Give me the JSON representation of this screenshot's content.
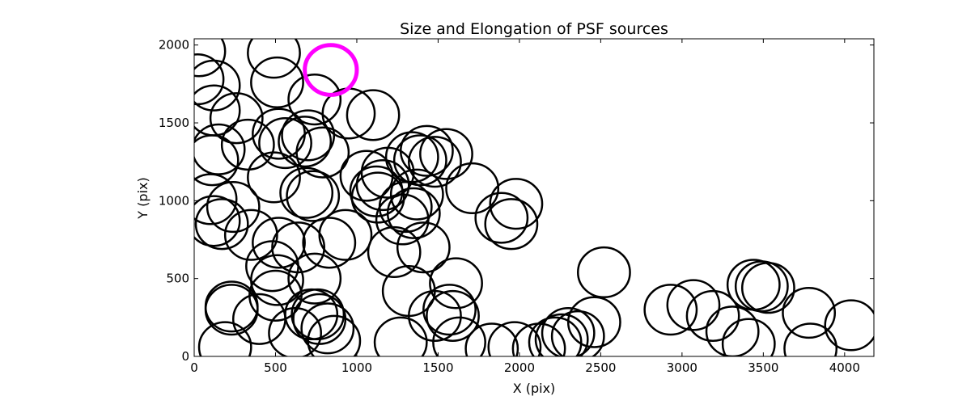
{
  "chart_data": {
    "type": "scatter",
    "title": "Size and Elongation of PSF sources",
    "xlabel": "X (pix)",
    "ylabel": "Y (pix)",
    "xlim": [
      0,
      4180
    ],
    "ylim": [
      0,
      2040
    ],
    "xticks": [
      0,
      500,
      1000,
      1500,
      2000,
      2500,
      3000,
      3500,
      4000
    ],
    "yticks": [
      0,
      500,
      1000,
      1500,
      2000
    ],
    "grid": false,
    "marker": "ellipse outline",
    "marker_width": 320,
    "marker_height": 320,
    "colors": {
      "sources": "#000000",
      "highlight": "#ff00ff"
    },
    "sources": [
      {
        "x": 30,
        "y": 1960
      },
      {
        "x": 20,
        "y": 1780
      },
      {
        "x": 120,
        "y": 1740
      },
      {
        "x": 120,
        "y": 1580
      },
      {
        "x": 260,
        "y": 1530
      },
      {
        "x": 150,
        "y": 1330
      },
      {
        "x": 110,
        "y": 1260
      },
      {
        "x": 100,
        "y": 1010
      },
      {
        "x": 120,
        "y": 870
      },
      {
        "x": 170,
        "y": 850
      },
      {
        "x": 240,
        "y": 960
      },
      {
        "x": 330,
        "y": 1360
      },
      {
        "x": 490,
        "y": 1950
      },
      {
        "x": 510,
        "y": 1760
      },
      {
        "x": 740,
        "y": 1650
      },
      {
        "x": 950,
        "y": 1560
      },
      {
        "x": 1100,
        "y": 1550
      },
      {
        "x": 520,
        "y": 1430
      },
      {
        "x": 560,
        "y": 1370
      },
      {
        "x": 680,
        "y": 1380
      },
      {
        "x": 700,
        "y": 1420
      },
      {
        "x": 790,
        "y": 1310
      },
      {
        "x": 490,
        "y": 1150
      },
      {
        "x": 690,
        "y": 1050
      },
      {
        "x": 730,
        "y": 1030
      },
      {
        "x": 350,
        "y": 780
      },
      {
        "x": 520,
        "y": 730
      },
      {
        "x": 640,
        "y": 700
      },
      {
        "x": 830,
        "y": 730
      },
      {
        "x": 930,
        "y": 780
      },
      {
        "x": 480,
        "y": 580
      },
      {
        "x": 510,
        "y": 490
      },
      {
        "x": 740,
        "y": 500
      },
      {
        "x": 500,
        "y": 390
      },
      {
        "x": 230,
        "y": 320
      },
      {
        "x": 230,
        "y": 300
      },
      {
        "x": 400,
        "y": 240
      },
      {
        "x": 190,
        "y": 60
      },
      {
        "x": 620,
        "y": 150
      },
      {
        "x": 720,
        "y": 270
      },
      {
        "x": 760,
        "y": 270
      },
      {
        "x": 770,
        "y": 240
      },
      {
        "x": 820,
        "y": 180
      },
      {
        "x": 860,
        "y": 100
      },
      {
        "x": 1060,
        "y": 1160
      },
      {
        "x": 1120,
        "y": 1060
      },
      {
        "x": 1160,
        "y": 1100
      },
      {
        "x": 1130,
        "y": 1020
      },
      {
        "x": 1190,
        "y": 1180
      },
      {
        "x": 1300,
        "y": 960
      },
      {
        "x": 1350,
        "y": 920
      },
      {
        "x": 1280,
        "y": 880
      },
      {
        "x": 1370,
        "y": 1040
      },
      {
        "x": 1230,
        "y": 670
      },
      {
        "x": 1410,
        "y": 700
      },
      {
        "x": 1320,
        "y": 420
      },
      {
        "x": 1340,
        "y": 1280
      },
      {
        "x": 1390,
        "y": 1260
      },
      {
        "x": 1430,
        "y": 1320
      },
      {
        "x": 1480,
        "y": 1250
      },
      {
        "x": 1550,
        "y": 1300
      },
      {
        "x": 1710,
        "y": 1080
      },
      {
        "x": 1890,
        "y": 890
      },
      {
        "x": 1950,
        "y": 850
      },
      {
        "x": 1980,
        "y": 980
      },
      {
        "x": 1610,
        "y": 470
      },
      {
        "x": 1480,
        "y": 260
      },
      {
        "x": 1570,
        "y": 300
      },
      {
        "x": 1590,
        "y": 260
      },
      {
        "x": 1630,
        "y": 90
      },
      {
        "x": 1270,
        "y": 90
      },
      {
        "x": 1830,
        "y": 50
      },
      {
        "x": 1970,
        "y": 60
      },
      {
        "x": 2120,
        "y": 50
      },
      {
        "x": 2220,
        "y": 90
      },
      {
        "x": 2260,
        "y": 110
      },
      {
        "x": 2300,
        "y": 150
      },
      {
        "x": 2360,
        "y": 130
      },
      {
        "x": 2460,
        "y": 220
      },
      {
        "x": 2520,
        "y": 540
      },
      {
        "x": 2930,
        "y": 300
      },
      {
        "x": 3070,
        "y": 330
      },
      {
        "x": 3190,
        "y": 260
      },
      {
        "x": 3310,
        "y": 160
      },
      {
        "x": 3410,
        "y": 80
      },
      {
        "x": 3440,
        "y": 460
      },
      {
        "x": 3490,
        "y": 450
      },
      {
        "x": 3530,
        "y": 440
      },
      {
        "x": 3780,
        "y": 280
      },
      {
        "x": 3790,
        "y": 50
      },
      {
        "x": 4040,
        "y": 200
      }
    ],
    "highlight": {
      "x": 840,
      "y": 1840
    }
  }
}
